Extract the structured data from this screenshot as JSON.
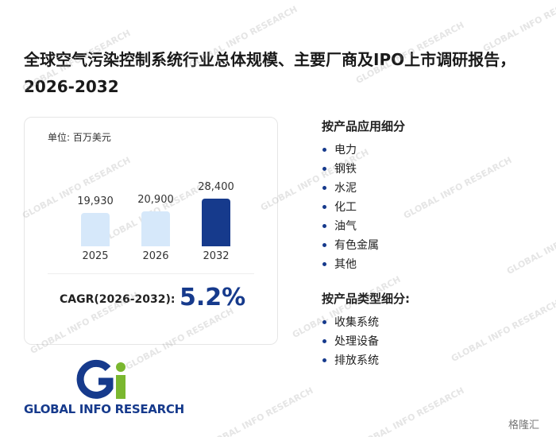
{
  "title": "全球空气污染控制系统行业总体规模、主要厂商及IPO上市调研报告，2026-2032",
  "chart_data": {
    "type": "bar",
    "unit_label": "单位: 百万美元",
    "categories": [
      "2025",
      "2026",
      "2032"
    ],
    "values": [
      19930,
      20900,
      28400
    ],
    "value_labels": [
      "19,930",
      "20,900",
      "28,400"
    ],
    "colors": [
      "#d6e8fa",
      "#d6e8fa",
      "#163a8c"
    ]
  },
  "cagr": {
    "label": "CAGR(2026-2032):",
    "value": "5.2%"
  },
  "segments": [
    {
      "heading": "按产品应用细分",
      "items": [
        "电力",
        "钢铁",
        "水泥",
        "化工",
        "油气",
        "有色金属",
        "其他"
      ]
    },
    {
      "heading": "按产品类型细分:",
      "items": [
        "收集系统",
        "处理设备",
        "排放系统"
      ]
    }
  ],
  "logo": "GLOBAL INFO RESEARCH",
  "watermark": "GLOBAL INFO RESEARCH",
  "source_logo": "格隆汇"
}
